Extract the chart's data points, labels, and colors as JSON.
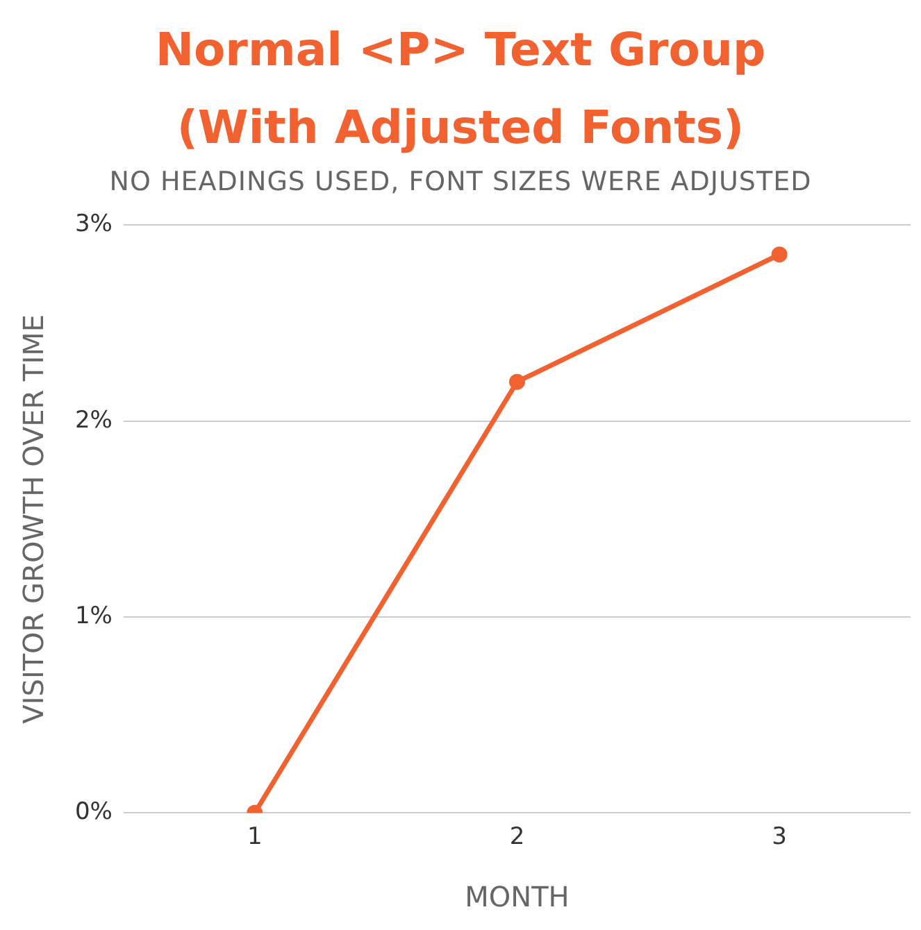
{
  "chart_data": {
    "type": "line",
    "title": "Normal <P> Text Group (With Adjusted Fonts)",
    "subtitle": "NO HEADINGS USED, FONT SIZES WERE ADJUSTED",
    "xlabel": "MONTH",
    "ylabel": "VISITOR GROWTH OVER TIME",
    "categories": [
      "1",
      "2",
      "3"
    ],
    "series": [
      {
        "color": "#f26130",
        "values": [
          0,
          2.2,
          2.85
        ]
      }
    ],
    "ylim": [
      0,
      3
    ],
    "yticks": [
      {
        "value": 0,
        "label": "0%"
      },
      {
        "value": 1,
        "label": "1%"
      },
      {
        "value": 2,
        "label": "2%"
      },
      {
        "value": 3,
        "label": "3%"
      }
    ],
    "grid": "y",
    "marker": "circle",
    "legend": false
  }
}
